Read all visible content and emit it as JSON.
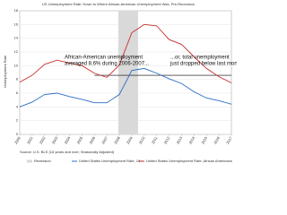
{
  "chart_data": {
    "type": "line",
    "title": "US Unemployment Rate: Down to Where African-American Unemployment Was, Pre-Recession",
    "y_label": "Unemployment Rate",
    "source": "Source: U.S. BLS (16 years and over, Seasonally Adjusted)",
    "x": [
      2000,
      2001,
      2002,
      2003,
      2004,
      2005,
      2006,
      2007,
      2008,
      2009,
      2010,
      2011,
      2012,
      2013,
      2014,
      2015,
      2016,
      2017
    ],
    "series": [
      {
        "name": "United States Unemployment Rate, 16+",
        "color": "#2b6cc4",
        "values": [
          4.0,
          4.7,
          5.8,
          6.0,
          5.5,
          5.1,
          4.6,
          4.6,
          5.8,
          9.3,
          9.6,
          8.9,
          8.1,
          7.4,
          6.2,
          5.3,
          4.9,
          4.4
        ]
      },
      {
        "name": "United States Unemployment Rate, African Americans",
        "color": "#c8312e",
        "values": [
          7.6,
          8.6,
          10.2,
          10.8,
          10.4,
          10.0,
          8.9,
          8.3,
          10.1,
          14.8,
          16.0,
          15.8,
          13.8,
          13.1,
          11.3,
          9.6,
          8.4,
          7.5
        ]
      }
    ],
    "recession": {
      "name": "Recession",
      "color": "#d9d9d9",
      "range": [
        2007.92,
        2009.5
      ]
    },
    "reference_line": 8.6,
    "annotations": [
      {
        "lines": [
          "African-American unemployment",
          "averaged 8.6% during 2006-2007..."
        ]
      },
      {
        "lines": [
          "...or, total unemployment",
          "just dropped below last month."
        ]
      }
    ],
    "xlim": [
      2000,
      2017
    ],
    "xticks": [
      2000,
      2001,
      2002,
      2003,
      2004,
      2005,
      2006,
      2007,
      2008,
      2009,
      2010,
      2011,
      2012,
      2013,
      2014,
      2015,
      2016,
      2017
    ],
    "ylim": [
      0,
      18
    ],
    "yticks": [
      0,
      2,
      4,
      6,
      8,
      10,
      12,
      14,
      16,
      18
    ],
    "grid": true
  }
}
